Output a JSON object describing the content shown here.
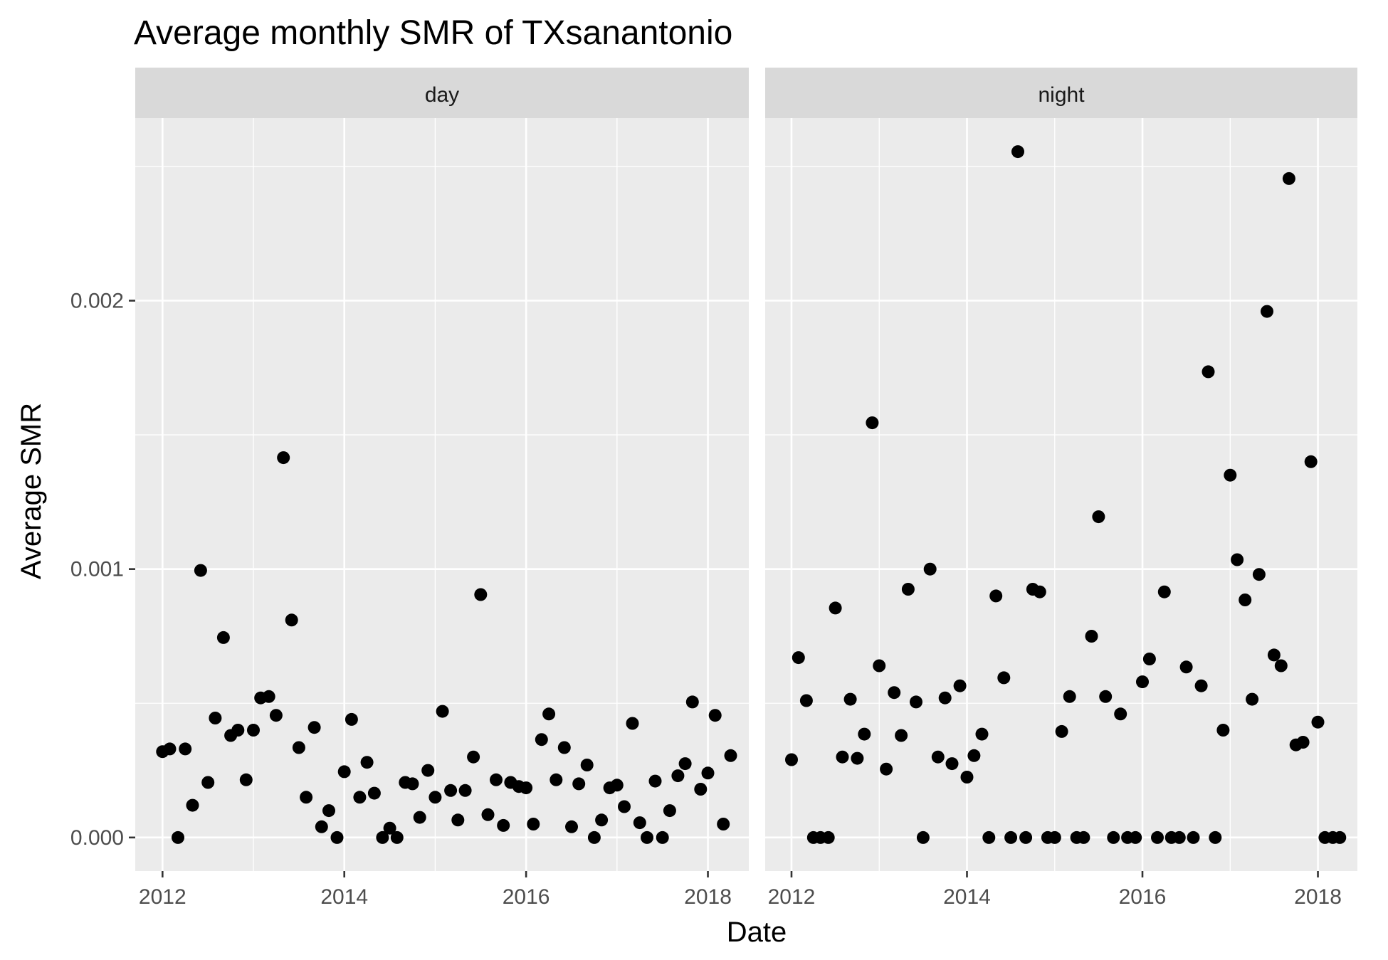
{
  "chart_data": {
    "type": "scatter",
    "title": "Average monthly SMR of TXsanantonio",
    "xlabel": "Date",
    "ylabel": "Average SMR",
    "xlim": [
      2011.7,
      2018.45
    ],
    "ylim": [
      -0.000125,
      0.00268
    ],
    "x_ticks": [
      2012,
      2014,
      2016,
      2018
    ],
    "x_tick_labels": [
      "2012",
      "2014",
      "2016",
      "2018"
    ],
    "y_ticks": [
      0.0,
      0.001,
      0.002
    ],
    "y_tick_labels": [
      "0.000",
      "0.001",
      "0.002"
    ],
    "grid": true,
    "legend": "none",
    "panels": [
      {
        "label": "day",
        "points": [
          [
            2012.0,
            0.00032
          ],
          [
            2012.08,
            0.00033
          ],
          [
            2012.17,
            0.0
          ],
          [
            2012.25,
            0.00033
          ],
          [
            2012.33,
            0.00012
          ],
          [
            2012.42,
            0.000995
          ],
          [
            2012.5,
            0.000205
          ],
          [
            2012.58,
            0.000445
          ],
          [
            2012.67,
            0.000745
          ],
          [
            2012.75,
            0.00038
          ],
          [
            2012.83,
            0.0004
          ],
          [
            2012.92,
            0.000215
          ],
          [
            2013.0,
            0.0004
          ],
          [
            2013.08,
            0.00052
          ],
          [
            2013.17,
            0.000525
          ],
          [
            2013.25,
            0.000455
          ],
          [
            2013.33,
            0.001415
          ],
          [
            2013.42,
            0.00081
          ],
          [
            2013.5,
            0.000335
          ],
          [
            2013.58,
            0.00015
          ],
          [
            2013.67,
            0.00041
          ],
          [
            2013.75,
            4e-05
          ],
          [
            2013.83,
            0.0001
          ],
          [
            2013.92,
            0.0
          ],
          [
            2014.0,
            0.000245
          ],
          [
            2014.08,
            0.00044
          ],
          [
            2014.17,
            0.00015
          ],
          [
            2014.25,
            0.00028
          ],
          [
            2014.33,
            0.000165
          ],
          [
            2014.42,
            0.0
          ],
          [
            2014.5,
            3.5e-05
          ],
          [
            2014.58,
            0.0
          ],
          [
            2014.67,
            0.000205
          ],
          [
            2014.75,
            0.0002
          ],
          [
            2014.83,
            7.5e-05
          ],
          [
            2014.92,
            0.00025
          ],
          [
            2015.0,
            0.00015
          ],
          [
            2015.08,
            0.00047
          ],
          [
            2015.17,
            0.000175
          ],
          [
            2015.25,
            6.5e-05
          ],
          [
            2015.33,
            0.000175
          ],
          [
            2015.42,
            0.0003
          ],
          [
            2015.5,
            0.000905
          ],
          [
            2015.58,
            8.5e-05
          ],
          [
            2015.67,
            0.000215
          ],
          [
            2015.75,
            4.5e-05
          ],
          [
            2015.83,
            0.000205
          ],
          [
            2015.92,
            0.00019
          ],
          [
            2016.0,
            0.000185
          ],
          [
            2016.08,
            5e-05
          ],
          [
            2016.17,
            0.000365
          ],
          [
            2016.25,
            0.00046
          ],
          [
            2016.33,
            0.000215
          ],
          [
            2016.42,
            0.000335
          ],
          [
            2016.5,
            4e-05
          ],
          [
            2016.58,
            0.0002
          ],
          [
            2016.67,
            0.00027
          ],
          [
            2016.75,
            0.0
          ],
          [
            2016.83,
            6.5e-05
          ],
          [
            2016.92,
            0.000185
          ],
          [
            2017.0,
            0.000195
          ],
          [
            2017.08,
            0.000115
          ],
          [
            2017.17,
            0.000425
          ],
          [
            2017.25,
            5.5e-05
          ],
          [
            2017.33,
            0.0
          ],
          [
            2017.42,
            0.00021
          ],
          [
            2017.5,
            0.0
          ],
          [
            2017.58,
            0.0001
          ],
          [
            2017.67,
            0.00023
          ],
          [
            2017.75,
            0.000275
          ],
          [
            2017.83,
            0.000505
          ],
          [
            2017.92,
            0.00018
          ],
          [
            2018.0,
            0.00024
          ],
          [
            2018.08,
            0.000455
          ],
          [
            2018.17,
            5e-05
          ],
          [
            2018.25,
            0.000305
          ]
        ]
      },
      {
        "label": "night",
        "points": [
          [
            2012.0,
            0.00029
          ],
          [
            2012.08,
            0.00067
          ],
          [
            2012.17,
            0.00051
          ],
          [
            2012.25,
            0.0
          ],
          [
            2012.33,
            0.0
          ],
          [
            2012.42,
            0.0
          ],
          [
            2012.5,
            0.000855
          ],
          [
            2012.58,
            0.0003
          ],
          [
            2012.67,
            0.000515
          ],
          [
            2012.75,
            0.000295
          ],
          [
            2012.83,
            0.000385
          ],
          [
            2012.92,
            0.001545
          ],
          [
            2013.0,
            0.00064
          ],
          [
            2013.08,
            0.000255
          ],
          [
            2013.17,
            0.00054
          ],
          [
            2013.25,
            0.00038
          ],
          [
            2013.33,
            0.000925
          ],
          [
            2013.42,
            0.000505
          ],
          [
            2013.5,
            0.0
          ],
          [
            2013.58,
            0.001
          ],
          [
            2013.67,
            0.0003
          ],
          [
            2013.75,
            0.00052
          ],
          [
            2013.83,
            0.000275
          ],
          [
            2013.92,
            0.000565
          ],
          [
            2014.0,
            0.000225
          ],
          [
            2014.08,
            0.000305
          ],
          [
            2014.17,
            0.000385
          ],
          [
            2014.25,
            0.0
          ],
          [
            2014.33,
            0.0009
          ],
          [
            2014.42,
            0.000595
          ],
          [
            2014.5,
            0.0
          ],
          [
            2014.58,
            0.002555
          ],
          [
            2014.67,
            0.0
          ],
          [
            2014.75,
            0.000925
          ],
          [
            2014.83,
            0.000915
          ],
          [
            2014.92,
            0.0
          ],
          [
            2015.0,
            0.0
          ],
          [
            2015.08,
            0.000395
          ],
          [
            2015.17,
            0.000525
          ],
          [
            2015.25,
            0.0
          ],
          [
            2015.33,
            0.0
          ],
          [
            2015.42,
            0.00075
          ],
          [
            2015.5,
            0.001195
          ],
          [
            2015.58,
            0.000525
          ],
          [
            2015.67,
            0.0
          ],
          [
            2015.75,
            0.00046
          ],
          [
            2015.83,
            0.0
          ],
          [
            2015.92,
            0.0
          ],
          [
            2016.0,
            0.00058
          ],
          [
            2016.08,
            0.000665
          ],
          [
            2016.17,
            0.0
          ],
          [
            2016.25,
            0.000915
          ],
          [
            2016.33,
            0.0
          ],
          [
            2016.42,
            0.0
          ],
          [
            2016.5,
            0.000635
          ],
          [
            2016.58,
            0.0
          ],
          [
            2016.67,
            0.000565
          ],
          [
            2016.75,
            0.001735
          ],
          [
            2016.83,
            0.0
          ],
          [
            2016.92,
            0.0004
          ],
          [
            2017.0,
            0.00135
          ],
          [
            2017.08,
            0.001035
          ],
          [
            2017.17,
            0.000885
          ],
          [
            2017.25,
            0.000515
          ],
          [
            2017.33,
            0.00098
          ],
          [
            2017.42,
            0.00196
          ],
          [
            2017.5,
            0.00068
          ],
          [
            2017.58,
            0.00064
          ],
          [
            2017.67,
            0.002455
          ],
          [
            2017.75,
            0.000345
          ],
          [
            2017.83,
            0.000355
          ],
          [
            2017.92,
            0.0014
          ],
          [
            2018.0,
            0.00043
          ],
          [
            2018.08,
            0.0
          ],
          [
            2018.17,
            0.0
          ],
          [
            2018.25,
            0.0
          ]
        ]
      }
    ]
  }
}
